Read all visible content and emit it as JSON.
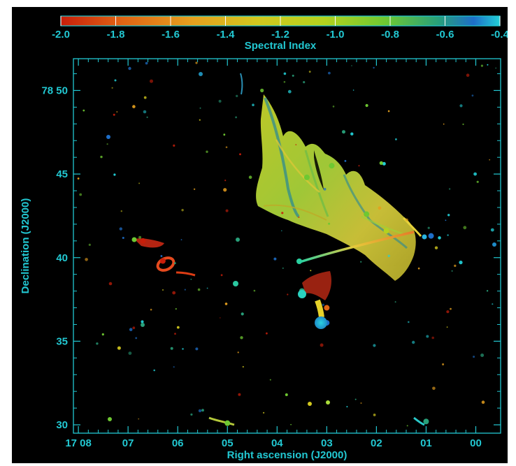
{
  "chart_data": {
    "type": "heatmap",
    "colorbar": {
      "label": "Spectral Index",
      "ticks": [
        -2.0,
        -1.8,
        -1.6,
        -1.4,
        -1.2,
        -1.0,
        -0.8,
        -0.6,
        -0.4
      ],
      "tick_labels": [
        "-2.0",
        "-1.8",
        "-1.6",
        "-1.4",
        "-1.2",
        "-1.0",
        "-0.8",
        "-0.6",
        "-0.4"
      ],
      "range": [
        -2.0,
        -0.4
      ],
      "placement": "top",
      "colors": [
        "#c81e0a",
        "#e06414",
        "#e6a01e",
        "#d2c81e",
        "#b4d21e",
        "#6ec832",
        "#28a07a",
        "#1e6ec8"
      ]
    },
    "xaxis": {
      "label": "Right ascension (J2000)",
      "ticks": [
        8,
        7,
        6,
        5,
        4,
        3,
        2,
        1,
        0
      ],
      "tick_labels": [
        "17 08",
        "07",
        "06",
        "05",
        "04",
        "03",
        "02",
        "01",
        "00"
      ],
      "range": [
        8.1,
        -0.5
      ],
      "unit": "minutes of RA (17h)"
    },
    "yaxis": {
      "label": "Declination (J2000)",
      "ticks": [
        50,
        45,
        40,
        35,
        30
      ],
      "tick_labels": [
        "78 50",
        "45",
        "40",
        "35",
        "30"
      ],
      "range": [
        29.5,
        51.9
      ],
      "unit": "arcmin of Dec (78°)"
    },
    "axis_color": "#22c8d2",
    "background": "#000000",
    "sources": [
      {
        "ra": 2.9,
        "dec": 45.5,
        "index": -1.0
      },
      {
        "ra": 3.4,
        "dec": 44.8,
        "index": -0.9
      },
      {
        "ra": 2.2,
        "dec": 42.6,
        "index": -0.85
      },
      {
        "ra": 1.8,
        "dec": 41.6,
        "index": -1.05
      },
      {
        "ra": 6.3,
        "dec": 39.8,
        "index": -1.9
      },
      {
        "ra": 6.7,
        "dec": 41.0,
        "index": -1.8
      },
      {
        "ra": 3.0,
        "dec": 37.0,
        "index": -1.75
      },
      {
        "ra": 3.0,
        "dec": 36.1,
        "index": -0.55
      },
      {
        "ra": 3.5,
        "dec": 38.0,
        "index": -0.7
      },
      {
        "ra": 0.9,
        "dec": 41.3,
        "index": -0.5
      },
      {
        "ra": 5.0,
        "dec": 30.1,
        "index": -1.0
      },
      {
        "ra": 1.0,
        "dec": 30.2,
        "index": -0.6
      }
    ]
  }
}
